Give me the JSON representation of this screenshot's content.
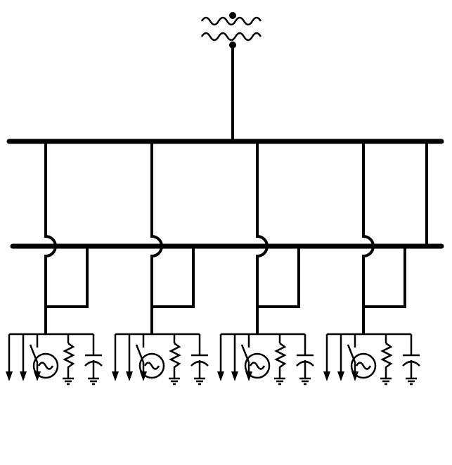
{
  "diagram": {
    "type": "single-line electrical diagram",
    "stroke_color": "#000000",
    "background_color": "#ffffff",
    "text_labels": [],
    "components": {
      "source": "transformer-icon",
      "upper_bus": "busbar",
      "lower_bus": "busbar",
      "feeders": [
        {
          "name": "feeder-1",
          "loads": [
            "load-arrow-icon",
            "load-arrow-icon",
            "switch-icon",
            "generator-icon",
            "resistor-icon",
            "capacitor-icon"
          ]
        },
        {
          "name": "feeder-2",
          "loads": [
            "load-arrow-icon",
            "load-arrow-icon",
            "switch-icon",
            "generator-icon",
            "resistor-icon",
            "capacitor-icon"
          ]
        },
        {
          "name": "feeder-3",
          "loads": [
            "load-arrow-icon",
            "load-arrow-icon",
            "switch-icon",
            "generator-icon",
            "resistor-icon",
            "capacitor-icon"
          ]
        },
        {
          "name": "feeder-4",
          "loads": [
            "load-arrow-icon",
            "load-arrow-icon",
            "switch-icon",
            "generator-icon",
            "resistor-icon",
            "capacitor-icon"
          ]
        }
      ]
    }
  }
}
